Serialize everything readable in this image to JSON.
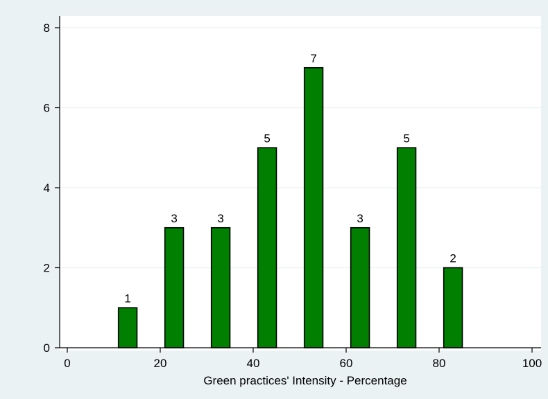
{
  "chart_data": {
    "type": "bar",
    "title": "",
    "xlabel": "Green practices' Intensity - Percentage",
    "ylabel": "",
    "x": [
      13.5,
      23.5,
      33.5,
      43.5,
      53.5,
      63.5,
      73.5,
      83.5
    ],
    "bar_width": 5,
    "values": [
      1,
      3,
      3,
      5,
      7,
      3,
      5,
      2
    ],
    "value_labels": [
      "1",
      "3",
      "3",
      "5",
      "7",
      "3",
      "5",
      "2"
    ],
    "xlim": [
      -2,
      101
    ],
    "ylim": [
      0,
      8
    ],
    "xticks": [
      0,
      20,
      40,
      60,
      80,
      100
    ],
    "xtick_labels": [
      "0",
      "20",
      "40",
      "60",
      "80",
      "100"
    ],
    "yticks": [
      0,
      2,
      4,
      6,
      8
    ],
    "ytick_labels": [
      "0",
      "2",
      "4",
      "6",
      "8"
    ],
    "grid": true,
    "legend": "none",
    "colors": {
      "bar_fill": "#007f00",
      "bar_stroke": "#000000",
      "plot_background": "#ffffff",
      "outer_background": "#eaf2f3",
      "grid": "#eaf2f3"
    }
  }
}
